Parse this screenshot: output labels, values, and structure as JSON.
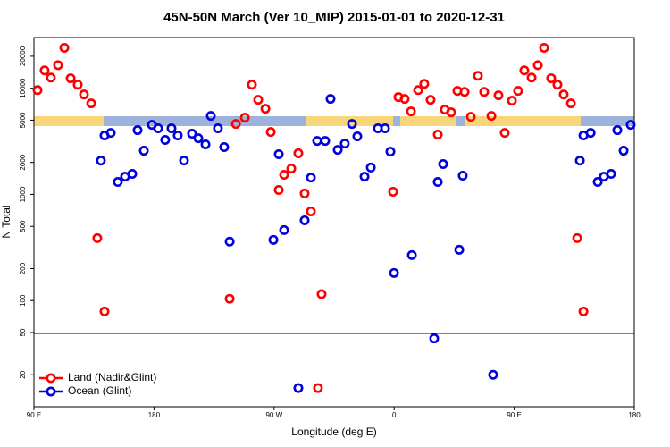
{
  "chart_data": {
    "type": "scatter",
    "title": "45N-50N March (Ver 10_MIP)   2015-01-01 to 2020-12-31",
    "x_label": "Longitude (deg E)",
    "y_label": "N Total",
    "log_y": true,
    "legend": "bottom-left",
    "xlim": [
      90,
      540
    ],
    "xticks": [
      {
        "value": 90,
        "label": "90 E"
      },
      180,
      {
        "value": 270,
        "label": "90 W"
      },
      {
        "value": 360,
        "label": "0"
      },
      {
        "value": 450,
        "label": "90 E"
      },
      {
        "value": 540,
        "label": "180"
      }
    ],
    "ylim": [
      10,
      30000
    ],
    "yticks": [
      20,
      50,
      100,
      200,
      500,
      1000,
      2000,
      5000,
      10000,
      20000
    ],
    "series": [
      {
        "name": "Land (Nadir&Glint)",
        "color": "#ff0000",
        "x": [
          92.7,
          98.0,
          102.7,
          108.1,
          112.8,
          117.5,
          122.8,
          127.5,
          132.9,
          137.5,
          142.9,
          236.7,
          241.4,
          248.1,
          253.4,
          258.1,
          263.5,
          267.5,
          273.5,
          277.5,
          282.9,
          288.2,
          292.9,
          297.6,
          302.9,
          305.6,
          359.2,
          363.2,
          367.9,
          372.6,
          378.0,
          382.6,
          387.3,
          392.7,
          398.0,
          402.7,
          407.4,
          412.8,
          417.5,
          422.8,
          427.5,
          432.9,
          438.2,
          442.9,
          448.3,
          452.9,
          457.6,
          463.0,
          467.7,
          472.4,
          477.7,
          482.4,
          487.1,
          492.5,
          497.2,
          501.9
        ],
        "values": [
          9600,
          14700,
          12600,
          16500,
          24000,
          12400,
          10800,
          8730,
          7200,
          387,
          79,
          104,
          4610,
          5280,
          10800,
          7780,
          6410,
          3870,
          1100,
          1530,
          1750,
          2440,
          1020,
          692,
          15,
          115,
          1060,
          8240,
          7930,
          6050,
          9600,
          11000,
          7780,
          3660,
          6290,
          5930,
          9440,
          9250,
          5380,
          13100,
          9250,
          5490,
          8570,
          3800,
          7630,
          9440,
          14700,
          12600,
          16500,
          24000,
          12400,
          10800,
          8730,
          7200,
          387,
          79
        ]
      },
      {
        "name": "Ocean (Glint)",
        "color": "#0000dd",
        "x": [
          140.2,
          142.9,
          147.6,
          152.9,
          158.3,
          163.7,
          167.7,
          172.4,
          178.4,
          183.1,
          188.4,
          193.1,
          197.8,
          202.5,
          208.5,
          213.2,
          218.6,
          222.6,
          227.9,
          232.6,
          236.7,
          269.5,
          273.5,
          277.5,
          288.2,
          292.9,
          297.6,
          302.3,
          308.3,
          312.3,
          317.7,
          323.0,
          328.4,
          332.4,
          337.8,
          342.5,
          347.8,
          353.2,
          357.2,
          359.9,
          373.3,
          390.0,
          392.7,
          396.7,
          408.8,
          411.4,
          434.2,
          499.2,
          501.9,
          507.3,
          512.6,
          517.2,
          522.6,
          527.3,
          532.0,
          537.3
        ],
        "values": [
          2080,
          3590,
          3800,
          1310,
          1470,
          1560,
          4030,
          2580,
          4520,
          4190,
          3260,
          4190,
          3590,
          2080,
          3730,
          3380,
          2960,
          5490,
          4190,
          2790,
          359,
          373,
          2390,
          461,
          15,
          570,
          1440,
          3190,
          3190,
          7930,
          2630,
          3010,
          4610,
          3520,
          1470,
          1790,
          4190,
          4190,
          2530,
          182,
          268,
          44,
          1310,
          1930,
          301,
          1500,
          20,
          2080,
          3590,
          3800,
          1310,
          1470,
          1560,
          4030,
          2580,
          4520
        ]
      }
    ]
  }
}
